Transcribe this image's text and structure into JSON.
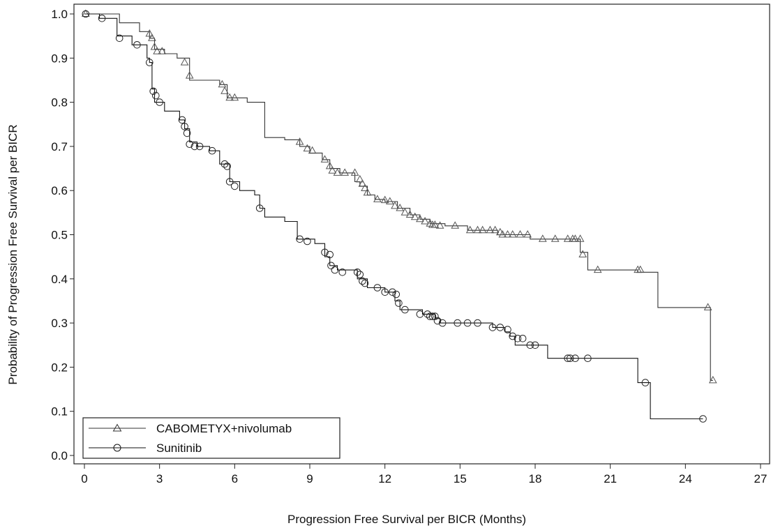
{
  "chart_data": {
    "type": "line",
    "subtype": "kaplan-meier",
    "title": "",
    "xlabel": "Progression Free Survival per BICR (Months)",
    "ylabel": "Probability of Progression Free Survival per BICR",
    "xlim": [
      0,
      27
    ],
    "ylim": [
      0,
      1.0
    ],
    "xticks": [
      0,
      3,
      6,
      9,
      12,
      15,
      18,
      21,
      24,
      27
    ],
    "yticks": [
      "0.0",
      "0.1",
      "0.2",
      "0.3",
      "0.4",
      "0.5",
      "0.6",
      "0.7",
      "0.8",
      "0.9",
      "1.0"
    ],
    "grid": false,
    "legend_position": "bottom-left",
    "series": [
      {
        "name": "CABOMETYX+nivolumab",
        "marker": "triangle",
        "color": "#333333",
        "steps": [
          [
            0,
            1.0
          ],
          [
            1.4,
            0.98
          ],
          [
            2.2,
            0.96
          ],
          [
            2.6,
            0.945
          ],
          [
            2.8,
            0.92
          ],
          [
            3.2,
            0.91
          ],
          [
            3.7,
            0.9
          ],
          [
            4.2,
            0.85
          ],
          [
            5.4,
            0.84
          ],
          [
            5.7,
            0.81
          ],
          [
            6.5,
            0.8
          ],
          [
            7.2,
            0.72
          ],
          [
            8.0,
            0.715
          ],
          [
            8.6,
            0.7
          ],
          [
            9.0,
            0.685
          ],
          [
            9.5,
            0.67
          ],
          [
            9.8,
            0.65
          ],
          [
            10.2,
            0.64
          ],
          [
            10.8,
            0.62
          ],
          [
            11.0,
            0.61
          ],
          [
            11.3,
            0.59
          ],
          [
            11.6,
            0.58
          ],
          [
            12.0,
            0.575
          ],
          [
            12.5,
            0.56
          ],
          [
            13.0,
            0.545
          ],
          [
            13.4,
            0.535
          ],
          [
            13.8,
            0.525
          ],
          [
            14.4,
            0.52
          ],
          [
            15.3,
            0.51
          ],
          [
            16.5,
            0.5
          ],
          [
            17.8,
            0.49
          ],
          [
            19.8,
            0.46
          ],
          [
            20.1,
            0.42
          ],
          [
            22.1,
            0.415
          ],
          [
            22.9,
            0.335
          ],
          [
            24.9,
            0.335
          ],
          [
            25.0,
            0.17
          ]
        ],
        "end_x": 25.1,
        "censored": [
          [
            0.05,
            1.0
          ],
          [
            2.6,
            0.955
          ],
          [
            2.7,
            0.945
          ],
          [
            2.8,
            0.925
          ],
          [
            2.9,
            0.915
          ],
          [
            3.1,
            0.915
          ],
          [
            4.0,
            0.89
          ],
          [
            4.2,
            0.86
          ],
          [
            5.5,
            0.84
          ],
          [
            5.6,
            0.825
          ],
          [
            5.8,
            0.81
          ],
          [
            6.0,
            0.81
          ],
          [
            8.6,
            0.71
          ],
          [
            8.9,
            0.695
          ],
          [
            9.1,
            0.69
          ],
          [
            9.6,
            0.67
          ],
          [
            9.8,
            0.655
          ],
          [
            9.9,
            0.645
          ],
          [
            10.1,
            0.64
          ],
          [
            10.4,
            0.64
          ],
          [
            10.8,
            0.64
          ],
          [
            11.0,
            0.625
          ],
          [
            11.1,
            0.615
          ],
          [
            11.2,
            0.605
          ],
          [
            11.3,
            0.595
          ],
          [
            11.7,
            0.58
          ],
          [
            12.0,
            0.578
          ],
          [
            12.2,
            0.575
          ],
          [
            12.4,
            0.565
          ],
          [
            12.6,
            0.56
          ],
          [
            12.8,
            0.55
          ],
          [
            13.0,
            0.545
          ],
          [
            13.2,
            0.54
          ],
          [
            13.4,
            0.535
          ],
          [
            13.6,
            0.53
          ],
          [
            13.8,
            0.525
          ],
          [
            13.9,
            0.522
          ],
          [
            14.0,
            0.522
          ],
          [
            14.2,
            0.52
          ],
          [
            14.8,
            0.52
          ],
          [
            15.4,
            0.51
          ],
          [
            15.7,
            0.51
          ],
          [
            15.9,
            0.51
          ],
          [
            16.2,
            0.51
          ],
          [
            16.4,
            0.51
          ],
          [
            16.6,
            0.505
          ],
          [
            16.7,
            0.5
          ],
          [
            16.9,
            0.5
          ],
          [
            17.1,
            0.5
          ],
          [
            17.4,
            0.5
          ],
          [
            17.7,
            0.5
          ],
          [
            18.3,
            0.49
          ],
          [
            18.8,
            0.49
          ],
          [
            19.3,
            0.49
          ],
          [
            19.5,
            0.49
          ],
          [
            19.6,
            0.49
          ],
          [
            19.8,
            0.49
          ],
          [
            19.9,
            0.455
          ],
          [
            20.5,
            0.42
          ],
          [
            22.1,
            0.42
          ],
          [
            22.2,
            0.42
          ],
          [
            24.9,
            0.335
          ],
          [
            25.1,
            0.17
          ]
        ]
      },
      {
        "name": "Sunitinib",
        "marker": "circle",
        "color": "#111111",
        "steps": [
          [
            0,
            1.0
          ],
          [
            0.6,
            0.99
          ],
          [
            1.3,
            0.95
          ],
          [
            1.9,
            0.93
          ],
          [
            2.5,
            0.9
          ],
          [
            2.6,
            0.89
          ],
          [
            2.7,
            0.83
          ],
          [
            2.8,
            0.8
          ],
          [
            3.2,
            0.78
          ],
          [
            3.8,
            0.76
          ],
          [
            4.0,
            0.74
          ],
          [
            4.2,
            0.71
          ],
          [
            4.5,
            0.7
          ],
          [
            5.0,
            0.69
          ],
          [
            5.4,
            0.66
          ],
          [
            5.8,
            0.62
          ],
          [
            6.2,
            0.6
          ],
          [
            6.8,
            0.59
          ],
          [
            7.0,
            0.56
          ],
          [
            7.2,
            0.54
          ],
          [
            8.0,
            0.53
          ],
          [
            8.5,
            0.49
          ],
          [
            9.2,
            0.48
          ],
          [
            9.6,
            0.45
          ],
          [
            9.8,
            0.43
          ],
          [
            10.1,
            0.42
          ],
          [
            10.9,
            0.4
          ],
          [
            11.3,
            0.38
          ],
          [
            12.0,
            0.37
          ],
          [
            12.4,
            0.35
          ],
          [
            12.6,
            0.33
          ],
          [
            13.5,
            0.32
          ],
          [
            14.0,
            0.31
          ],
          [
            14.2,
            0.3
          ],
          [
            16.3,
            0.29
          ],
          [
            16.8,
            0.28
          ],
          [
            17.0,
            0.27
          ],
          [
            17.2,
            0.25
          ],
          [
            18.5,
            0.22
          ],
          [
            22.1,
            0.165
          ],
          [
            22.6,
            0.083
          ]
        ],
        "end_x": 24.7,
        "censored": [
          [
            0.05,
            1.0
          ],
          [
            0.7,
            0.99
          ],
          [
            1.4,
            0.945
          ],
          [
            2.1,
            0.93
          ],
          [
            2.6,
            0.89
          ],
          [
            2.75,
            0.825
          ],
          [
            2.85,
            0.815
          ],
          [
            3.0,
            0.8
          ],
          [
            3.9,
            0.76
          ],
          [
            4.0,
            0.745
          ],
          [
            4.1,
            0.73
          ],
          [
            4.2,
            0.705
          ],
          [
            4.4,
            0.7
          ],
          [
            4.6,
            0.7
          ],
          [
            5.1,
            0.69
          ],
          [
            5.6,
            0.66
          ],
          [
            5.7,
            0.655
          ],
          [
            5.8,
            0.62
          ],
          [
            6.0,
            0.61
          ],
          [
            7.0,
            0.56
          ],
          [
            8.6,
            0.49
          ],
          [
            8.9,
            0.485
          ],
          [
            9.6,
            0.46
          ],
          [
            9.8,
            0.455
          ],
          [
            9.85,
            0.43
          ],
          [
            10.0,
            0.42
          ],
          [
            10.3,
            0.415
          ],
          [
            10.9,
            0.415
          ],
          [
            11.0,
            0.41
          ],
          [
            11.1,
            0.395
          ],
          [
            11.2,
            0.39
          ],
          [
            11.7,
            0.38
          ],
          [
            12.0,
            0.37
          ],
          [
            12.3,
            0.37
          ],
          [
            12.45,
            0.365
          ],
          [
            12.55,
            0.345
          ],
          [
            12.8,
            0.33
          ],
          [
            13.4,
            0.32
          ],
          [
            13.7,
            0.32
          ],
          [
            13.8,
            0.315
          ],
          [
            13.9,
            0.315
          ],
          [
            14.0,
            0.315
          ],
          [
            14.1,
            0.305
          ],
          [
            14.3,
            0.3
          ],
          [
            14.9,
            0.3
          ],
          [
            15.3,
            0.3
          ],
          [
            15.7,
            0.3
          ],
          [
            16.3,
            0.29
          ],
          [
            16.6,
            0.29
          ],
          [
            16.9,
            0.285
          ],
          [
            17.1,
            0.27
          ],
          [
            17.3,
            0.265
          ],
          [
            17.5,
            0.265
          ],
          [
            17.8,
            0.25
          ],
          [
            18.0,
            0.25
          ],
          [
            19.3,
            0.22
          ],
          [
            19.4,
            0.22
          ],
          [
            19.6,
            0.22
          ],
          [
            20.1,
            0.22
          ],
          [
            22.4,
            0.165
          ],
          [
            24.7,
            0.083
          ]
        ]
      }
    ]
  }
}
